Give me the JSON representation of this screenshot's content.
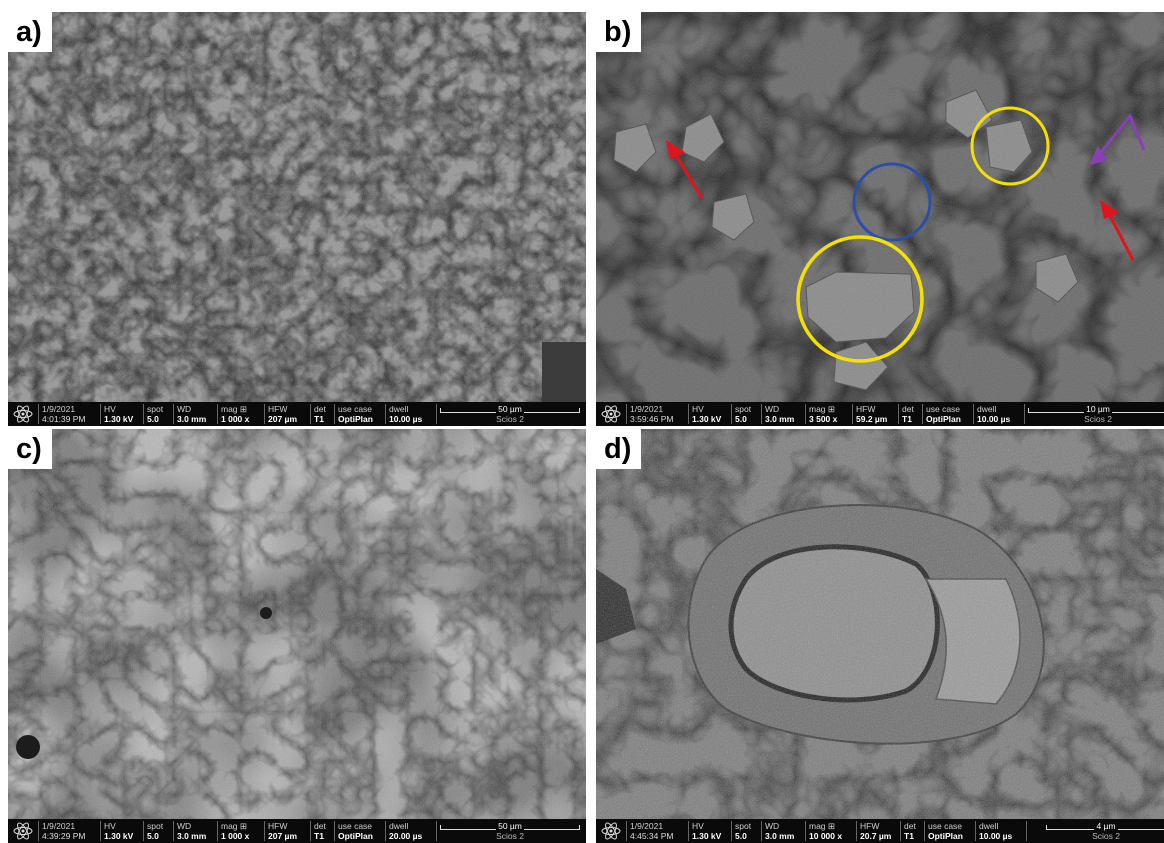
{
  "panels": [
    {
      "label": "a)",
      "date": "1/9/2021",
      "time": "4:01:39 PM",
      "hv": "1.30 kV",
      "spot": "5.0",
      "wd": "3.0 mm",
      "mag": "1 000 x",
      "hfw": "207 µm",
      "det": "T1",
      "use_case": "OptiPlan",
      "dwell": "10.00 µs",
      "scale": "50 µm",
      "instrument": "Scios 2"
    },
    {
      "label": "b)",
      "date": "1/9/2021",
      "time": "3:59:46 PM",
      "hv": "1.30 kV",
      "spot": "5.0",
      "wd": "3.0 mm",
      "mag": "3 500 x",
      "hfw": "59.2 µm",
      "det": "T1",
      "use_case": "OptiPlan",
      "dwell": "10.00 µs",
      "scale": "10 µm",
      "instrument": "Scios 2"
    },
    {
      "label": "c)",
      "date": "1/9/2021",
      "time": "4:39:29 PM",
      "hv": "1.30 kV",
      "spot": "5.0",
      "wd": "3.0 mm",
      "mag": "1 000 x",
      "hfw": "207 µm",
      "det": "T1",
      "use_case": "OptiPlan",
      "dwell": "20.00 µs",
      "scale": "50 µm",
      "instrument": "Scios 2"
    },
    {
      "label": "d)",
      "date": "1/9/2021",
      "time": "4:45:34 PM",
      "hv": "1.30 kV",
      "spot": "5.0",
      "wd": "3.0 mm",
      "mag": "10 000 x",
      "hfw": "20.7 µm",
      "det": "T1",
      "use_case": "OptiPlan",
      "dwell": "10.00 µs",
      "scale": "4 µm",
      "instrument": "Scios 2"
    }
  ],
  "field_headers": {
    "hv": "HV",
    "spot": "spot",
    "wd": "WD",
    "mag": "mag",
    "hfw": "HFW",
    "det": "det",
    "use_case": "use case",
    "dwell": "dwell"
  },
  "icons": {
    "logo": "atom-logo-icon",
    "mag_icon": "grid-square-icon"
  },
  "colors": {
    "annotation_yellow": "#f5e100",
    "annotation_blue": "#2a4fa8",
    "arrow_red": "#e0141c",
    "arrow_purple": "#8a3fb5"
  }
}
